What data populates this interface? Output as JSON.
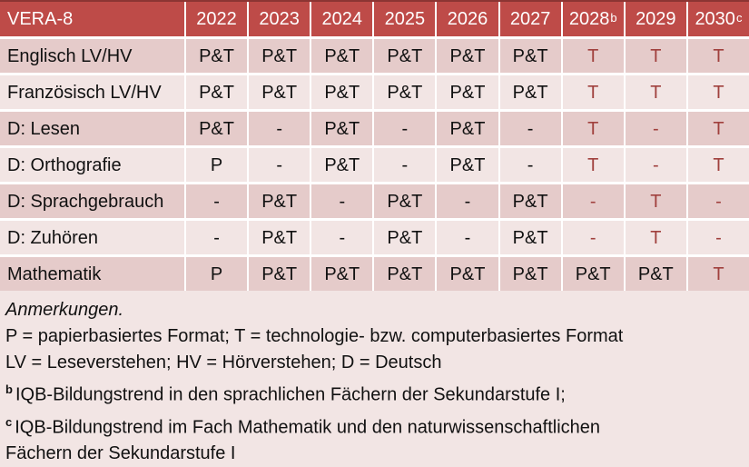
{
  "colors": {
    "header_bg": "#BE4B48",
    "header_top_border": "#8C3533",
    "row_dark": "#E5CBCA",
    "row_light": "#F2E5E4",
    "accent_red_text": "#A0403D",
    "text": "#111111",
    "grid_gap": "#FFFFFF"
  },
  "table": {
    "title": "VERA-8",
    "header": [
      {
        "label": "VERA-8",
        "sup": ""
      },
      {
        "label": "2022",
        "sup": ""
      },
      {
        "label": "2023",
        "sup": ""
      },
      {
        "label": "2024",
        "sup": ""
      },
      {
        "label": "2025",
        "sup": ""
      },
      {
        "label": "2026",
        "sup": ""
      },
      {
        "label": "2027",
        "sup": ""
      },
      {
        "label": "2028",
        "sup": "b"
      },
      {
        "label": "2029",
        "sup": ""
      },
      {
        "label": "2030",
        "sup": "c"
      }
    ],
    "rows": [
      {
        "label": "Englisch LV/HV",
        "shade": "dark",
        "cells": [
          {
            "text": "P&T",
            "red": false
          },
          {
            "text": "P&T",
            "red": false
          },
          {
            "text": "P&T",
            "red": false
          },
          {
            "text": "P&T",
            "red": false
          },
          {
            "text": "P&T",
            "red": false
          },
          {
            "text": "P&T",
            "red": false
          },
          {
            "text": "T",
            "red": true
          },
          {
            "text": "T",
            "red": true
          },
          {
            "text": "T",
            "red": true
          }
        ]
      },
      {
        "label": "Französisch LV/HV",
        "shade": "light",
        "cells": [
          {
            "text": "P&T",
            "red": false
          },
          {
            "text": "P&T",
            "red": false
          },
          {
            "text": "P&T",
            "red": false
          },
          {
            "text": "P&T",
            "red": false
          },
          {
            "text": "P&T",
            "red": false
          },
          {
            "text": "P&T",
            "red": false
          },
          {
            "text": "T",
            "red": true
          },
          {
            "text": "T",
            "red": true
          },
          {
            "text": "T",
            "red": true
          }
        ]
      },
      {
        "label": "D: Lesen",
        "shade": "dark",
        "cells": [
          {
            "text": "P&T",
            "red": false
          },
          {
            "text": "-",
            "red": false
          },
          {
            "text": "P&T",
            "red": false
          },
          {
            "text": "-",
            "red": false
          },
          {
            "text": "P&T",
            "red": false
          },
          {
            "text": "-",
            "red": false
          },
          {
            "text": "T",
            "red": true
          },
          {
            "text": "-",
            "red": true
          },
          {
            "text": "T",
            "red": true
          }
        ]
      },
      {
        "label": "D: Orthografie",
        "shade": "light",
        "cells": [
          {
            "text": "P",
            "red": false
          },
          {
            "text": "-",
            "red": false
          },
          {
            "text": "P&T",
            "red": false
          },
          {
            "text": "-",
            "red": false
          },
          {
            "text": "P&T",
            "red": false
          },
          {
            "text": "-",
            "red": false
          },
          {
            "text": "T",
            "red": true
          },
          {
            "text": "-",
            "red": true
          },
          {
            "text": "T",
            "red": true
          }
        ]
      },
      {
        "label": "D: Sprachgebrauch",
        "shade": "dark",
        "cells": [
          {
            "text": "-",
            "red": false
          },
          {
            "text": "P&T",
            "red": false
          },
          {
            "text": "-",
            "red": false
          },
          {
            "text": "P&T",
            "red": false
          },
          {
            "text": "-",
            "red": false
          },
          {
            "text": "P&T",
            "red": false
          },
          {
            "text": "-",
            "red": true
          },
          {
            "text": "T",
            "red": true
          },
          {
            "text": "-",
            "red": true
          }
        ]
      },
      {
        "label": "D: Zuhören",
        "shade": "light",
        "cells": [
          {
            "text": "-",
            "red": false
          },
          {
            "text": "P&T",
            "red": false
          },
          {
            "text": "-",
            "red": false
          },
          {
            "text": "P&T",
            "red": false
          },
          {
            "text": "-",
            "red": false
          },
          {
            "text": "P&T",
            "red": false
          },
          {
            "text": "-",
            "red": true
          },
          {
            "text": "T",
            "red": true
          },
          {
            "text": "-",
            "red": true
          }
        ]
      },
      {
        "label": "Mathematik",
        "shade": "dark",
        "cells": [
          {
            "text": "P",
            "red": false
          },
          {
            "text": "P&T",
            "red": false
          },
          {
            "text": "P&T",
            "red": false
          },
          {
            "text": "P&T",
            "red": false
          },
          {
            "text": "P&T",
            "red": false
          },
          {
            "text": "P&T",
            "red": false
          },
          {
            "text": "P&T",
            "red": false
          },
          {
            "text": "P&T",
            "red": false
          },
          {
            "text": "T",
            "red": true
          }
        ]
      }
    ]
  },
  "notes": {
    "heading": "Anmerkungen.",
    "lines": [
      {
        "sup": "",
        "text": "P = papierbasiertes Format; T = technologie- bzw. computerbasiertes Format"
      },
      {
        "sup": "",
        "text": "LV = Leseverstehen; HV = Hörverstehen; D = Deutsch"
      },
      {
        "sup": "b",
        "text": "IQB-Bildungstrend in den sprachlichen Fächern der Sekundarstufe I;"
      },
      {
        "sup": "c",
        "text": "IQB-Bildungstrend im Fach Mathematik und den naturwissenschaftlichen Fächern der Sekundarstufe I"
      }
    ]
  }
}
